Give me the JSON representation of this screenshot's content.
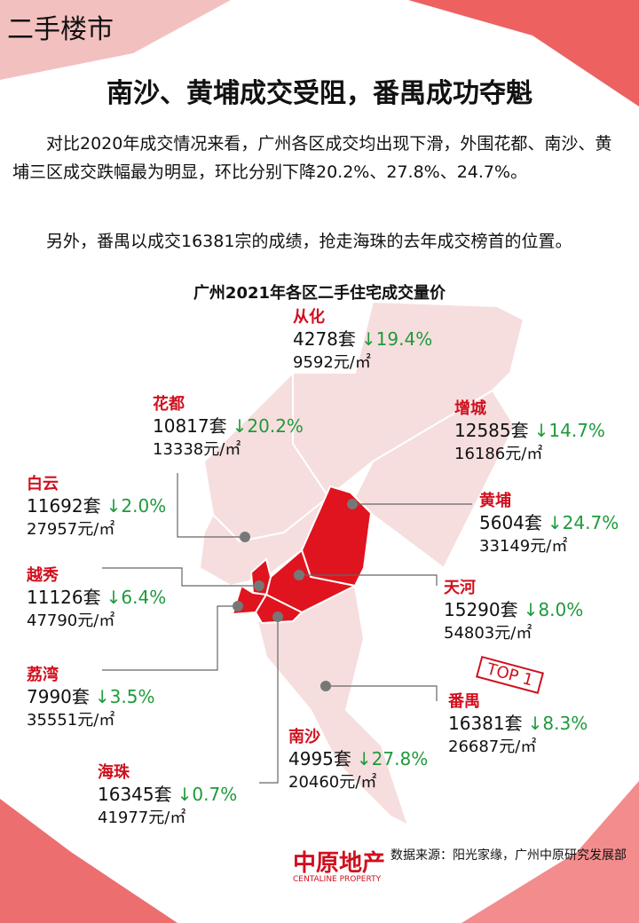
{
  "header": {
    "tag": "二手楼市",
    "title": "南沙、黄埔成交受阻，番禺成功夺魁"
  },
  "paragraphs": [
    "对比2020年成交情况来看，广州各区成交均出现下滑，外围花都、南沙、黄埔三区成交跌幅最为明显，环比分别下降20.2%、27.8%、24.7%。",
    "另外，番禺以成交16381宗的成绩，抢走海珠的去年成交榜首的位置。"
  ],
  "map": {
    "title": "广州2021年各区二手住宅成交量价",
    "districts": [
      {
        "name": "从化",
        "volume": "4278套",
        "change": "↓19.4%",
        "price": "9592元/㎡"
      },
      {
        "name": "花都",
        "volume": "10817套",
        "change": "↓20.2%",
        "price": "13338元/㎡"
      },
      {
        "name": "增城",
        "volume": "12585套",
        "change": "↓14.7%",
        "price": "16186元/㎡"
      },
      {
        "name": "白云",
        "volume": "11692套",
        "change": "↓2.0%",
        "price": "27957元/㎡"
      },
      {
        "name": "黄埔",
        "volume": "5604套",
        "change": "↓24.7%",
        "price": "33149元/㎡"
      },
      {
        "name": "越秀",
        "volume": "11126套",
        "change": "↓6.4%",
        "price": "47790元/㎡"
      },
      {
        "name": "天河",
        "volume": "15290套",
        "change": "↓8.0%",
        "price": "54803元/㎡"
      },
      {
        "name": "荔湾",
        "volume": "7990套",
        "change": "↓3.5%",
        "price": "35551元/㎡"
      },
      {
        "name": "番禺",
        "volume": "16381套",
        "change": "↓8.3%",
        "price": "26687元/㎡"
      },
      {
        "name": "南沙",
        "volume": "4995套",
        "change": "↓27.8%",
        "price": "20460元/㎡"
      },
      {
        "name": "海珠",
        "volume": "16345套",
        "change": "↓0.7%",
        "price": "41977元/㎡"
      }
    ],
    "badge": "TOP 1"
  },
  "footer": {
    "source": "数据来源：阳光家缘，广州中原研究发展部",
    "logo": "中原地产",
    "logo_en": "CENTALINE PROPERTY"
  }
}
